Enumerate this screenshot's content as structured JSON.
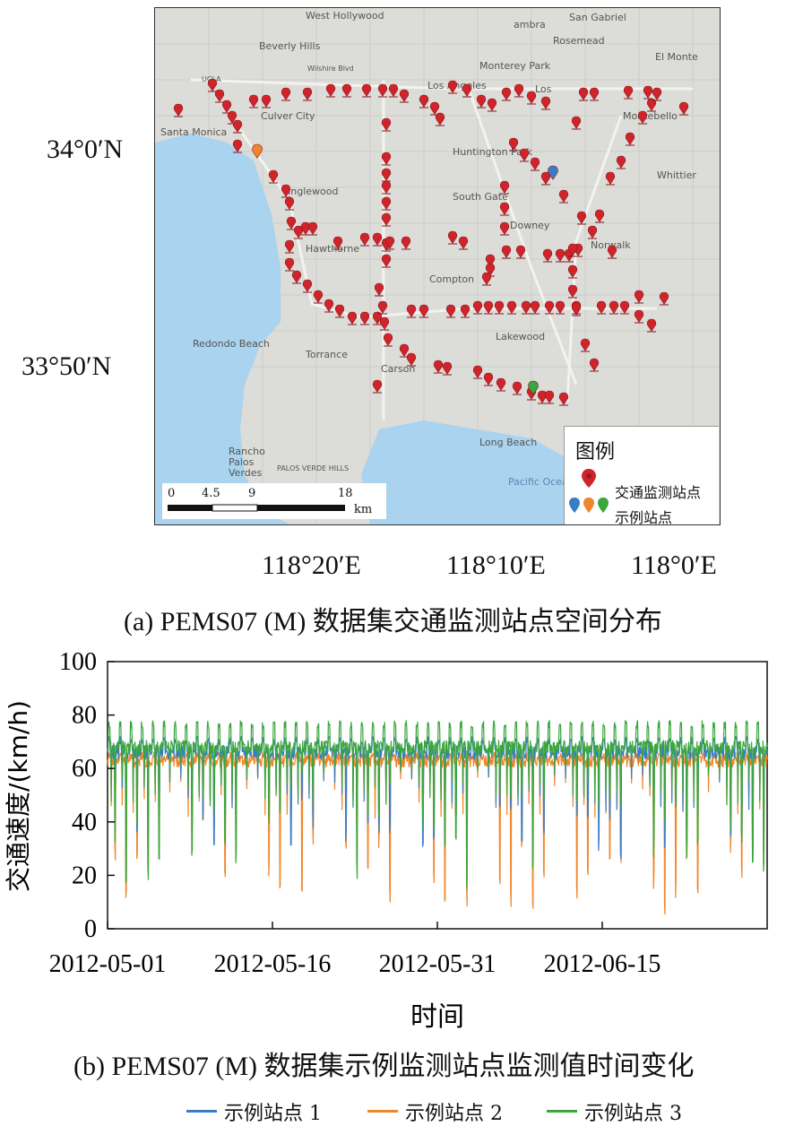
{
  "map_panel": {
    "lat_labels": [
      "34°0′N",
      "33°50′N"
    ],
    "lon_labels": [
      "118°20′E",
      "118°10′E",
      "118°0′E"
    ],
    "place_labels": {
      "west_hollywood": "West Hollywood",
      "beverly_hills": "Beverly Hills",
      "alhambra": "ambra",
      "san_gabriel": "San Gabriel",
      "rosemead": "Rosemead",
      "el_monte": "El Monte",
      "ucla": "UCLA",
      "wilshire": "Wilshire Blvd",
      "monterey_park": "Monterey Park",
      "los_angeles": "Los Angeles",
      "los": "Los",
      "santa_monica": "Santa Monica",
      "culver_city": "Culver City",
      "montebello": "Montebello",
      "huntington_park": "Huntington Park",
      "whittier": "Whittier",
      "inglewood": "Inglewood",
      "south_gate": "South Gate",
      "downey": "Downey",
      "hawthorne": "Hawthorne",
      "norwalk": "Norwalk",
      "compton": "Compton",
      "redondo_beach": "Redondo Beach",
      "torrance": "Torrance",
      "lakewood": "Lakewood",
      "carson": "Carson",
      "long_beach": "Long Beach",
      "rancho": "Rancho",
      "palos": "Palos",
      "verdes": "Verdes",
      "palos_verde_hills": "PALOS VERDE HILLS",
      "pacific_ocean": "Pacific Ocean"
    },
    "legend": {
      "title": "图例",
      "items": [
        {
          "label": "交通监测站点"
        },
        {
          "label": "示例站点"
        }
      ]
    },
    "scale": {
      "ticks": [
        "0",
        "4.5",
        "9",
        "18"
      ],
      "unit": "km"
    },
    "colors": {
      "station": "#d0242b",
      "sample_blue": "#3b7dc4",
      "sample_orange": "#f0862b",
      "sample_green": "#3aa63c",
      "water": "#a9d3ee",
      "land": "#d8d8d4"
    },
    "caption": "(a) PEMS07 (M) 数据集交通监测站点空间分布"
  },
  "chart_data": {
    "type": "line",
    "title": "",
    "xlabel": "时间",
    "ylabel": "交通速度/(km/h)",
    "x_ticks": [
      "2012-05-01",
      "2012-05-16",
      "2012-05-31",
      "2012-06-15"
    ],
    "x_range": [
      "2012-05-01",
      "2012-06-30"
    ],
    "y_ticks": [
      0,
      20,
      40,
      60,
      80,
      100
    ],
    "ylim": [
      0,
      100
    ],
    "grid": false,
    "legend_position": "bottom",
    "series": [
      {
        "name": "示例站点 1",
        "color": "#3b7dc4",
        "baseline": 66,
        "daily_min_range": [
          25,
          45
        ],
        "peak": 72
      },
      {
        "name": "示例站点 2",
        "color": "#f0862b",
        "baseline": 63,
        "daily_min_range": [
          5,
          40
        ],
        "peak": 66
      },
      {
        "name": "示例站点 3",
        "color": "#3aa63c",
        "baseline": 68,
        "daily_min_range": [
          14,
          55
        ],
        "peak": 78
      }
    ],
    "caption": "(b) PEMS07 (M) 数据集示例监测站点监测值时间变化"
  }
}
